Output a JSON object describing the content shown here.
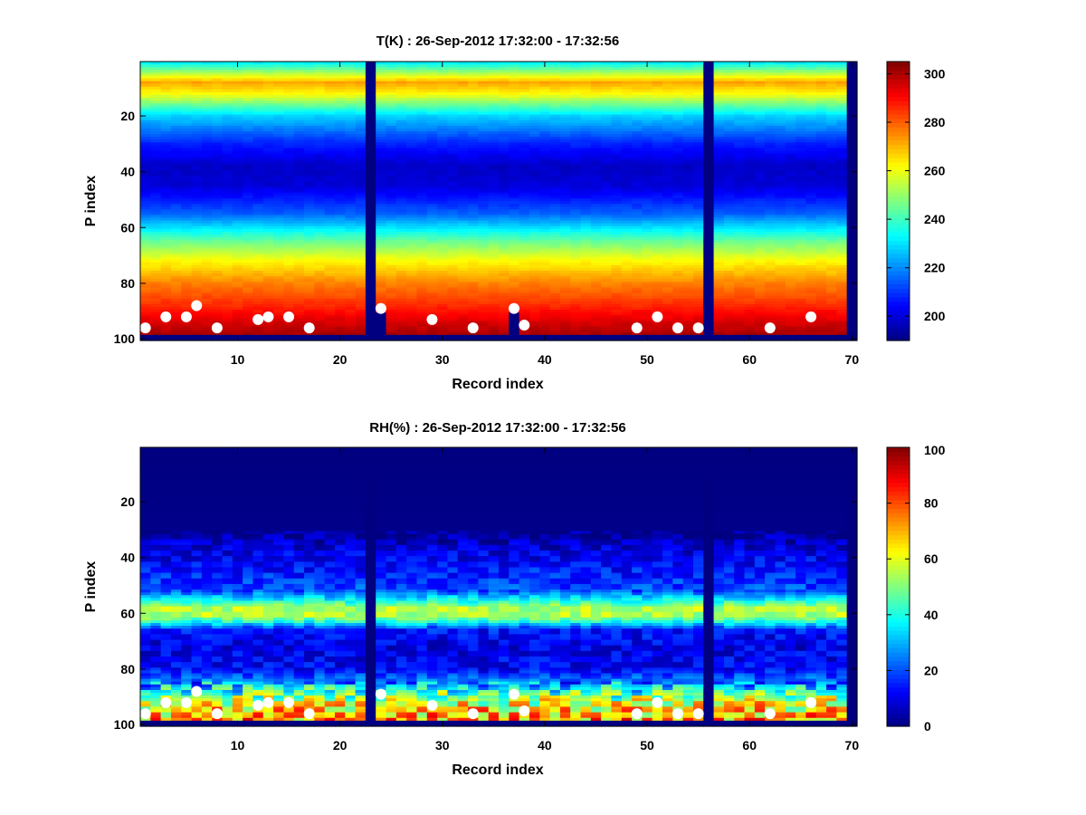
{
  "chart_data": [
    {
      "type": "heatmap",
      "title": "T(K) : 26-Sep-2012 17:32:00 - 17:32:56",
      "xlabel": "Record index",
      "ylabel": "P index",
      "xlim": [
        0.5,
        70.5
      ],
      "ylim": [
        1,
        100
      ],
      "y_reversed": true,
      "x_ticks": [
        10,
        20,
        30,
        40,
        50,
        60,
        70
      ],
      "y_ticks": [
        20,
        40,
        60,
        80,
        100
      ],
      "colormap": "jet",
      "color_range": [
        190,
        305
      ],
      "colorbar_ticks": [
        200,
        220,
        240,
        260,
        280,
        300
      ],
      "masked_records": [
        23,
        56,
        70
      ],
      "surface_markers": [
        [
          1,
          96
        ],
        [
          3,
          92
        ],
        [
          5,
          92
        ],
        [
          6,
          88
        ],
        [
          8,
          96
        ],
        [
          12,
          93
        ],
        [
          13,
          92
        ],
        [
          15,
          92
        ],
        [
          17,
          96
        ],
        [
          24,
          89
        ],
        [
          29,
          93
        ],
        [
          33,
          96
        ],
        [
          37,
          89
        ],
        [
          38,
          95
        ],
        [
          49,
          96
        ],
        [
          51,
          92
        ],
        [
          53,
          96
        ],
        [
          55,
          96
        ],
        [
          62,
          96
        ],
        [
          66,
          92
        ]
      ],
      "profile": {
        "p": [
          1,
          8,
          12,
          20,
          30,
          38,
          45,
          55,
          65,
          72,
          80,
          88,
          94,
          98
        ],
        "value": [
          232,
          272,
          262,
          228,
          208,
          198,
          200,
          215,
          245,
          262,
          276,
          286,
          295,
          300
        ]
      }
    },
    {
      "type": "heatmap",
      "title": "RH(%) : 26-Sep-2012 17:32:00 - 17:32:56",
      "xlabel": "Record index",
      "ylabel": "P index",
      "xlim": [
        0.5,
        70.5
      ],
      "ylim": [
        1,
        100
      ],
      "y_reversed": true,
      "x_ticks": [
        10,
        20,
        30,
        40,
        50,
        60,
        70
      ],
      "y_ticks": [
        20,
        40,
        60,
        80,
        100
      ],
      "colormap": "jet",
      "color_range": [
        0,
        100
      ],
      "colorbar_ticks": [
        0,
        20,
        40,
        60,
        80,
        100
      ],
      "masked_records": [
        23,
        56,
        70
      ],
      "surface_markers": [
        [
          1,
          96
        ],
        [
          3,
          92
        ],
        [
          5,
          92
        ],
        [
          6,
          88
        ],
        [
          8,
          96
        ],
        [
          12,
          93
        ],
        [
          13,
          92
        ],
        [
          15,
          92
        ],
        [
          17,
          96
        ],
        [
          24,
          89
        ],
        [
          29,
          93
        ],
        [
          33,
          96
        ],
        [
          37,
          89
        ],
        [
          38,
          95
        ],
        [
          49,
          96
        ],
        [
          51,
          92
        ],
        [
          53,
          96
        ],
        [
          55,
          96
        ],
        [
          62,
          96
        ],
        [
          66,
          92
        ]
      ],
      "profile": {
        "p": [
          1,
          30,
          36,
          44,
          52,
          56,
          58,
          61,
          63,
          66,
          72,
          80,
          86,
          92,
          98
        ],
        "value": [
          0,
          1,
          8,
          14,
          20,
          42,
          55,
          55,
          40,
          14,
          10,
          12,
          30,
          60,
          72
        ]
      }
    }
  ]
}
